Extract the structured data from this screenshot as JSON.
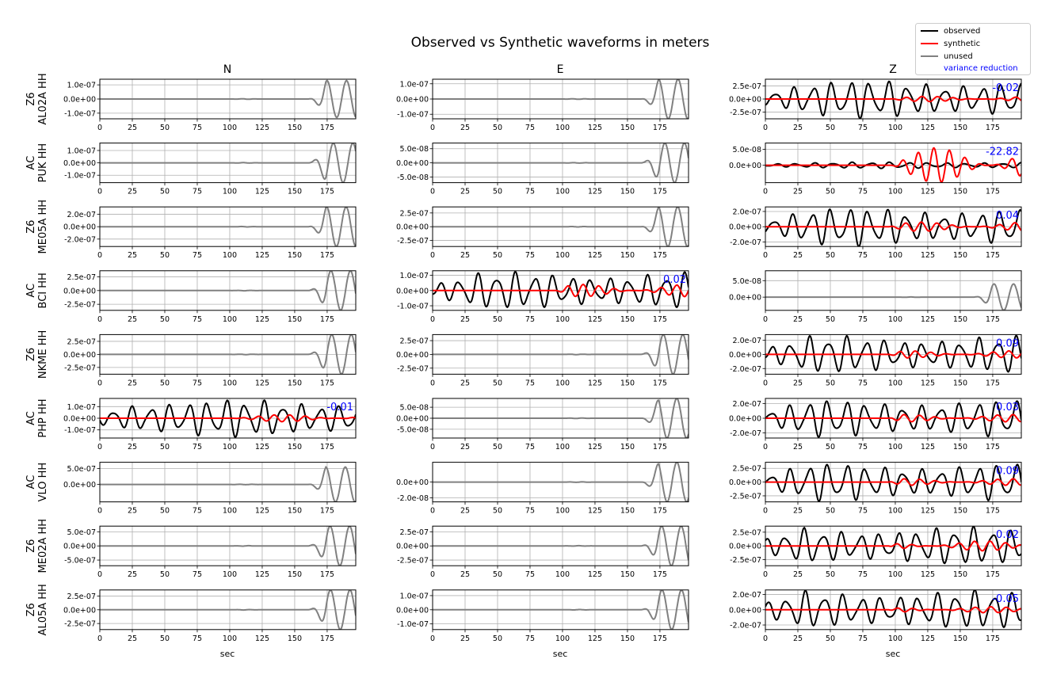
{
  "figure": {
    "title": "Observed vs Synthetic waveforms in meters",
    "xlabel": "sec",
    "columns": [
      "N",
      "E",
      "Z"
    ],
    "colors": {
      "observed": "#000000",
      "synthetic": "#ff0000",
      "unused": "#808080",
      "variance_reduction": "#0000ff",
      "grid": "#b0b0b0"
    }
  },
  "legend": {
    "position": "top-right",
    "entries": [
      {
        "label": "observed",
        "color": "#000000",
        "kind": "line"
      },
      {
        "label": "synthetic",
        "color": "#ff0000",
        "kind": "line"
      },
      {
        "label": "unused",
        "color": "#808080",
        "kind": "line"
      },
      {
        "label": "variance reduction",
        "color": "#0000ff",
        "kind": "text"
      }
    ]
  },
  "chart_data": {
    "type": "line",
    "title": "Observed vs Synthetic waveforms in meters",
    "xlabel": "sec",
    "xlim": [
      0,
      197
    ],
    "xticks": [
      0,
      25,
      50,
      75,
      100,
      125,
      150,
      175
    ],
    "grid": true,
    "rows": [
      {
        "station_label": "Z6\nAL02A HH",
        "panels": [
          {
            "ylim": [
              -1.4e-07,
              1.4e-07
            ],
            "yticks": [
              -1e-07,
              0,
              1e-07
            ],
            "ytick_labels": [
              "-1.0e-07",
              "0.0e+00",
              "1.0e-07"
            ],
            "used": false,
            "unused_amp": 1.3e-07,
            "vr": ""
          },
          {
            "ylim": [
              -1.3e-07,
              1.3e-07
            ],
            "yticks": [
              -1e-07,
              0,
              1e-07
            ],
            "ytick_labels": [
              "-1.0e-07",
              "0.0e+00",
              "1.0e-07"
            ],
            "used": false,
            "unused_amp": 1.3e-07,
            "vr": ""
          },
          {
            "ylim": [
              -3.8e-07,
              3.8e-07
            ],
            "yticks": [
              -2.5e-07,
              0,
              2.5e-07
            ],
            "ytick_labels": [
              "-2.5e-07",
              "0.0e+00",
              "2.5e-07"
            ],
            "used": true,
            "obs_amp": 3.6e-07,
            "syn_amp": 5e-08,
            "vr": "-0.02"
          }
        ]
      },
      {
        "station_label": "AC\nPUK HH",
        "panels": [
          {
            "ylim": [
              -1.6e-07,
              1.6e-07
            ],
            "yticks": [
              -1e-07,
              0,
              1e-07
            ],
            "ytick_labels": [
              "-1.0e-07",
              "0.0e+00",
              "1.0e-07"
            ],
            "used": false,
            "unused_amp": 1.6e-07,
            "vr": ""
          },
          {
            "ylim": [
              -7e-08,
              7e-08
            ],
            "yticks": [
              -5e-08,
              0,
              5e-08
            ],
            "ytick_labels": [
              "-5.0e-08",
              "0.0e+00",
              "5.0e-08"
            ],
            "used": false,
            "unused_amp": 7e-08,
            "vr": ""
          },
          {
            "ylim": [
              -5.5e-08,
              7e-08
            ],
            "yticks": [
              0,
              5e-08
            ],
            "ytick_labels": [
              "0.0e+00",
              "5.0e-08"
            ],
            "used": true,
            "obs_amp": 1e-08,
            "syn_amp": 5.5e-08,
            "vr": "-22.82"
          }
        ]
      },
      {
        "station_label": "Z6\nME05A HH",
        "panels": [
          {
            "ylim": [
              -3.2e-07,
              3.2e-07
            ],
            "yticks": [
              -2e-07,
              0,
              2e-07
            ],
            "ytick_labels": [
              "-2.0e-07",
              "0.0e+00",
              "2.0e-07"
            ],
            "used": false,
            "unused_amp": 3.2e-07,
            "vr": ""
          },
          {
            "ylim": [
              -3.6e-07,
              3.6e-07
            ],
            "yticks": [
              -2.5e-07,
              0,
              2.5e-07
            ],
            "ytick_labels": [
              "-2.5e-07",
              "0.0e+00",
              "2.5e-07"
            ],
            "used": false,
            "unused_amp": 3.6e-07,
            "vr": ""
          },
          {
            "ylim": [
              -2.6e-07,
              2.6e-07
            ],
            "yticks": [
              -2e-07,
              0,
              2e-07
            ],
            "ytick_labels": [
              "-2.0e-07",
              "0.0e+00",
              "2.0e-07"
            ],
            "used": true,
            "obs_amp": 2.5e-07,
            "syn_amp": 6e-08,
            "vr": "0.04"
          }
        ]
      },
      {
        "station_label": "AC\nBCI HH",
        "panels": [
          {
            "ylim": [
              -3.6e-07,
              3.6e-07
            ],
            "yticks": [
              -2.5e-07,
              0,
              2.5e-07
            ],
            "ytick_labels": [
              "-2.5e-07",
              "0.0e+00",
              "2.5e-07"
            ],
            "used": false,
            "unused_amp": 3.6e-07,
            "vr": ""
          },
          {
            "ylim": [
              -1.3e-07,
              1.3e-07
            ],
            "yticks": [
              -1e-07,
              0,
              1e-07
            ],
            "ytick_labels": [
              "-1.0e-07",
              "0.0e+00",
              "1.0e-07"
            ],
            "used": true,
            "obs_amp": 1.2e-07,
            "syn_amp": 4e-08,
            "vr": "0.02"
          },
          {
            "ylim": [
              -4e-08,
              8e-08
            ],
            "yticks": [
              0,
              5e-08
            ],
            "ytick_labels": [
              "0.0e+00",
              "5.0e-08"
            ],
            "used": false,
            "unused_amp": 4e-08,
            "vr": ""
          }
        ]
      },
      {
        "station_label": "Z6\nNKME HH",
        "panels": [
          {
            "ylim": [
              -3.8e-07,
              3.8e-07
            ],
            "yticks": [
              -2.5e-07,
              0,
              2.5e-07
            ],
            "ytick_labels": [
              "-2.5e-07",
              "0.0e+00",
              "2.5e-07"
            ],
            "used": false,
            "unused_amp": 3.8e-07,
            "vr": ""
          },
          {
            "ylim": [
              -3.6e-07,
              3.6e-07
            ],
            "yticks": [
              -2.5e-07,
              0,
              2.5e-07
            ],
            "ytick_labels": [
              "-2.5e-07",
              "0.0e+00",
              "2.5e-07"
            ],
            "used": false,
            "unused_amp": 3.6e-07,
            "vr": ""
          },
          {
            "ylim": [
              -2.8e-07,
              2.8e-07
            ],
            "yticks": [
              -2e-07,
              0,
              2e-07
            ],
            "ytick_labels": [
              "-2.0e-07",
              "0.0e+00",
              "2.0e-07"
            ],
            "used": true,
            "obs_amp": 2.6e-07,
            "syn_amp": 5e-08,
            "vr": "0.09"
          }
        ]
      },
      {
        "station_label": "AC\nPHP HH",
        "panels": [
          {
            "ylim": [
              -1.7e-07,
              1.7e-07
            ],
            "yticks": [
              -1e-07,
              0,
              1e-07
            ],
            "ytick_labels": [
              "-1.0e-07",
              "0.0e+00",
              "1.0e-07"
            ],
            "used": true,
            "obs_amp": 1.6e-07,
            "syn_amp": 3e-08,
            "vr": "-0.01"
          },
          {
            "ylim": [
              -9e-08,
              9e-08
            ],
            "yticks": [
              -5e-08,
              0,
              5e-08
            ],
            "ytick_labels": [
              "-5.0e-08",
              "0.0e+00",
              "5.0e-08"
            ],
            "used": false,
            "unused_amp": 9e-08,
            "vr": ""
          },
          {
            "ylim": [
              -2.7e-07,
              2.7e-07
            ],
            "yticks": [
              -2e-07,
              0,
              2e-07
            ],
            "ytick_labels": [
              "-2.0e-07",
              "0.0e+00",
              "2.0e-07"
            ],
            "used": true,
            "obs_amp": 2.5e-07,
            "syn_amp": 5e-08,
            "vr": "0.03"
          }
        ]
      },
      {
        "station_label": "AC\nVLO HH",
        "panels": [
          {
            "ylim": [
              -5.5e-07,
              7e-07
            ],
            "yticks": [
              0,
              5e-07
            ],
            "ytick_labels": [
              "0.0e+00",
              "5.0e-07"
            ],
            "used": false,
            "unused_amp": 5.5e-07,
            "vr": ""
          },
          {
            "ylim": [
              -2.5e-08,
              2.5e-08
            ],
            "yticks": [
              -2e-08,
              0
            ],
            "ytick_labels": [
              "-2.0e-08",
              "0.0e+00"
            ],
            "used": false,
            "unused_amp": 2.5e-08,
            "vr": ""
          },
          {
            "ylim": [
              -3.6e-07,
              3.6e-07
            ],
            "yticks": [
              -2.5e-07,
              0,
              2.5e-07
            ],
            "ytick_labels": [
              "-2.5e-07",
              "0.0e+00",
              "2.5e-07"
            ],
            "used": true,
            "obs_amp": 3.4e-07,
            "syn_amp": 6e-08,
            "vr": "0.09"
          }
        ]
      },
      {
        "station_label": "Z6\nME02A HH",
        "panels": [
          {
            "ylim": [
              -7e-07,
              7e-07
            ],
            "yticks": [
              -5e-07,
              0,
              5e-07
            ],
            "ytick_labels": [
              "-5.0e-07",
              "0.0e+00",
              "5.0e-07"
            ],
            "used": false,
            "unused_amp": 7e-07,
            "vr": ""
          },
          {
            "ylim": [
              -3.5e-07,
              3.5e-07
            ],
            "yticks": [
              -2.5e-07,
              0,
              2.5e-07
            ],
            "ytick_labels": [
              "-2.5e-07",
              "0.0e+00",
              "2.5e-07"
            ],
            "used": false,
            "unused_amp": 3.5e-07,
            "vr": ""
          },
          {
            "ylim": [
              -3.6e-07,
              3.6e-07
            ],
            "yticks": [
              -2.5e-07,
              0,
              2.5e-07
            ],
            "ytick_labels": [
              "-2.5e-07",
              "0.0e+00",
              "2.5e-07"
            ],
            "used": true,
            "obs_amp": 3.4e-07,
            "syn_amp": 9e-08,
            "vr": "0.02"
          }
        ]
      },
      {
        "station_label": "Z6\nAL05A HH",
        "panels": [
          {
            "ylim": [
              -3.6e-07,
              3.6e-07
            ],
            "yticks": [
              -2.5e-07,
              0,
              2.5e-07
            ],
            "ytick_labels": [
              "-2.5e-07",
              "0.0e+00",
              "2.5e-07"
            ],
            "used": false,
            "unused_amp": 3.6e-07,
            "vr": ""
          },
          {
            "ylim": [
              -1.4e-07,
              1.4e-07
            ],
            "yticks": [
              -1e-07,
              0,
              1e-07
            ],
            "ytick_labels": [
              "-1.0e-07",
              "0.0e+00",
              "1.0e-07"
            ],
            "used": false,
            "unused_amp": 1.4e-07,
            "vr": ""
          },
          {
            "ylim": [
              -2.6e-07,
              2.6e-07
            ],
            "yticks": [
              -2e-07,
              0,
              2e-07
            ],
            "ytick_labels": [
              "-2.0e-07",
              "0.0e+00",
              "2.0e-07"
            ],
            "used": true,
            "obs_amp": 2.5e-07,
            "syn_amp": 4e-08,
            "vr": "-0.05"
          }
        ]
      }
    ]
  }
}
